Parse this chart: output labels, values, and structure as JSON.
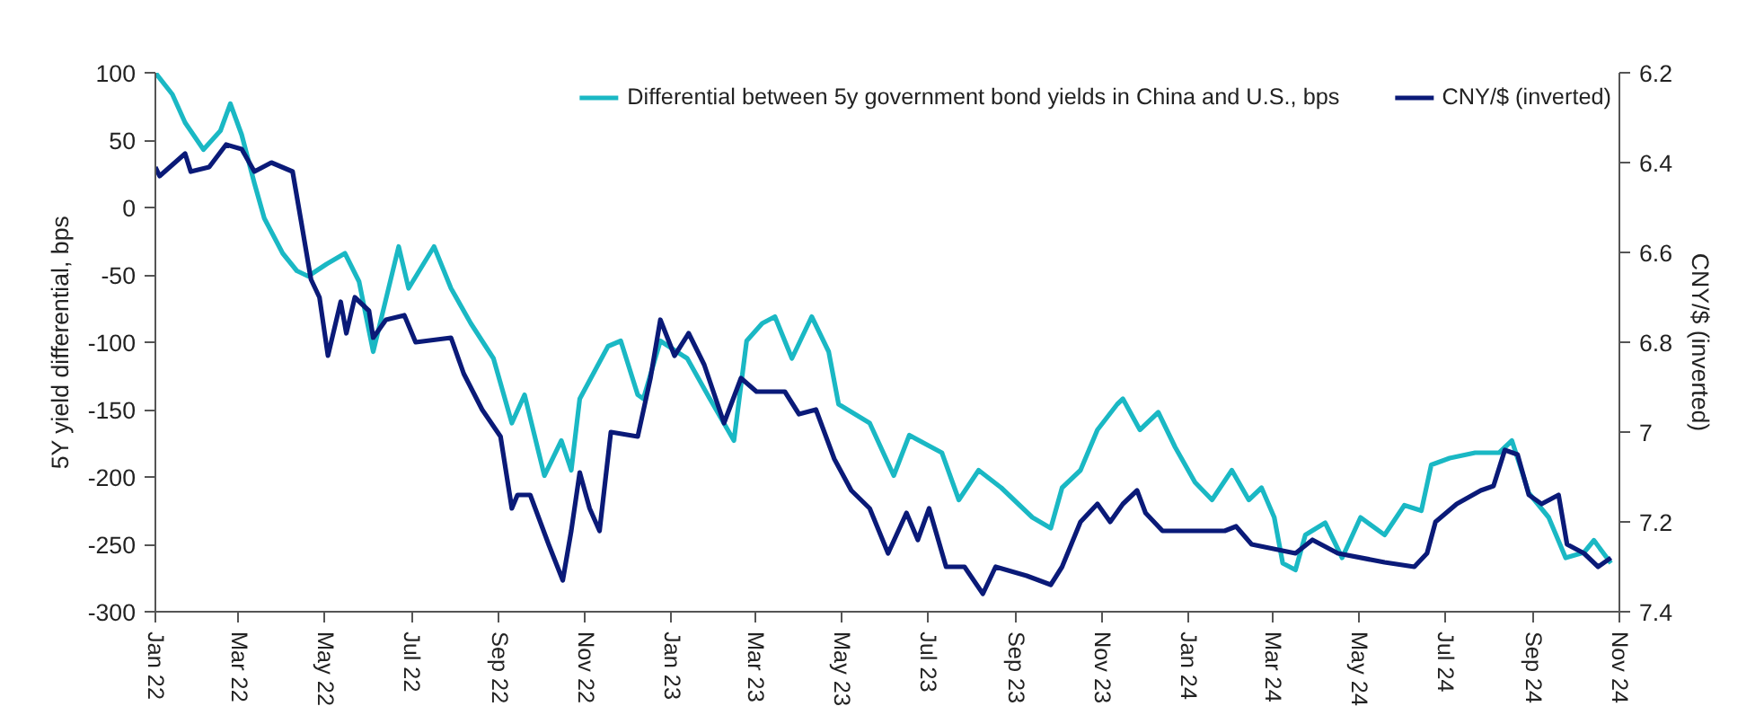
{
  "chart_data": {
    "type": "line",
    "ylabel": "5Y yield differential, bps",
    "y2label": "CNY/$ (inverted)",
    "xlim": [
      "2022-01-01",
      "2024-11-01"
    ],
    "xticks": [
      {
        "value": "2022-01-01",
        "label": "Jan 22"
      },
      {
        "value": "2022-03-01",
        "label": "Mar 22"
      },
      {
        "value": "2022-05-01",
        "label": "May 22"
      },
      {
        "value": "2022-07-01",
        "label": "Jul 22"
      },
      {
        "value": "2022-09-01",
        "label": "Sep 22"
      },
      {
        "value": "2022-11-01",
        "label": "Nov 22"
      },
      {
        "value": "2023-01-01",
        "label": "Jan 23"
      },
      {
        "value": "2023-03-01",
        "label": "Mar 23"
      },
      {
        "value": "2023-05-01",
        "label": "May 23"
      },
      {
        "value": "2023-07-01",
        "label": "Jul 23"
      },
      {
        "value": "2023-09-01",
        "label": "Sep 23"
      },
      {
        "value": "2023-11-01",
        "label": "Nov 23"
      },
      {
        "value": "2024-01-01",
        "label": "Jan 24"
      },
      {
        "value": "2024-03-01",
        "label": "Mar 24"
      },
      {
        "value": "2024-05-01",
        "label": "May 24"
      },
      {
        "value": "2024-07-01",
        "label": "Jul 24"
      },
      {
        "value": "2024-09-01",
        "label": "Sep 24"
      },
      {
        "value": "2024-11-01",
        "label": "Nov 24"
      }
    ],
    "ylim": [
      -300,
      100
    ],
    "yticks": [
      -300,
      -250,
      -200,
      -150,
      -100,
      -50,
      0,
      50,
      100
    ],
    "y2lim": [
      7.4,
      6.2
    ],
    "y2ticks": [
      {
        "value": 6.2,
        "label": "6.2"
      },
      {
        "value": 6.4,
        "label": "6.4"
      },
      {
        "value": 6.6,
        "label": "6.6"
      },
      {
        "value": 6.8,
        "label": "6.8"
      },
      {
        "value": 7.0,
        "label": "7"
      },
      {
        "value": 7.2,
        "label": "7.2"
      },
      {
        "value": 7.4,
        "label": "7.4"
      }
    ],
    "legend": "top right",
    "marker": "none",
    "line_style": "solid",
    "series": [
      {
        "name": "Differential between 5y government bond yields in China and U.S., bps",
        "color": "#1ab8c4",
        "x": [
          "2022-01-01",
          "2022-01-13",
          "2022-01-22",
          "2022-02-04",
          "2022-02-16",
          "2022-02-23",
          "2022-03-03",
          "2022-03-12",
          "2022-03-19",
          "2022-04-01",
          "2022-04-11",
          "2022-04-19",
          "2022-05-02",
          "2022-05-15",
          "2022-05-25",
          "2022-06-04",
          "2022-06-13",
          "2022-06-22",
          "2022-06-29",
          "2022-07-17",
          "2022-07-29",
          "2022-08-12",
          "2022-08-28",
          "2022-09-10",
          "2022-09-19",
          "2022-10-03",
          "2022-10-15",
          "2022-10-22",
          "2022-10-28",
          "2022-11-17",
          "2022-11-26",
          "2022-12-08",
          "2022-12-12",
          "2022-12-24",
          "2023-01-12",
          "2023-01-28",
          "2023-02-14",
          "2023-02-23",
          "2023-03-06",
          "2023-03-15",
          "2023-03-27",
          "2023-04-10",
          "2023-04-22",
          "2023-04-29",
          "2023-05-21",
          "2023-06-07",
          "2023-06-18",
          "2023-07-11",
          "2023-07-23",
          "2023-08-06",
          "2023-08-22",
          "2023-09-13",
          "2023-09-26",
          "2023-10-04",
          "2023-10-17",
          "2023-10-29",
          "2023-11-12",
          "2023-11-16",
          "2023-11-28",
          "2023-12-11",
          "2023-12-23",
          "2024-01-06",
          "2024-01-18",
          "2024-02-01",
          "2024-02-13",
          "2024-02-22",
          "2024-03-02",
          "2024-03-08",
          "2024-03-17",
          "2024-03-24",
          "2024-04-07",
          "2024-04-19",
          "2024-05-02",
          "2024-05-19",
          "2024-06-02",
          "2024-06-14",
          "2024-06-21",
          "2024-07-04",
          "2024-07-22",
          "2024-08-08",
          "2024-08-17",
          "2024-08-29",
          "2024-09-12",
          "2024-09-24",
          "2024-10-07",
          "2024-10-14",
          "2024-10-26"
        ],
        "values": [
          100,
          84,
          63,
          43,
          57,
          77,
          54,
          18,
          -8,
          -34,
          -47,
          -51,
          -42,
          -34,
          -55,
          -107,
          -68,
          -29,
          -60,
          -29,
          -60,
          -86,
          -112,
          -160,
          -139,
          -199,
          -173,
          -195,
          -142,
          -103,
          -99,
          -139,
          -142,
          -99,
          -112,
          -142,
          -173,
          -99,
          -86,
          -81,
          -112,
          -81,
          -107,
          -146,
          -160,
          -199,
          -169,
          -182,
          -217,
          -195,
          -208,
          -230,
          -238,
          -208,
          -195,
          -165,
          -146,
          -142,
          -165,
          -152,
          -178,
          -204,
          -217,
          -195,
          -217,
          -208,
          -230,
          -264,
          -269,
          -243,
          -234,
          -260,
          -230,
          -243,
          -221,
          -225,
          -191,
          -186,
          -182,
          -182,
          -173,
          -212,
          -230,
          -260,
          -256,
          -247,
          -264
        ]
      },
      {
        "name": "CNY/$ (inverted)",
        "color": "#0a1a78",
        "axis": "y2",
        "x": [
          "2022-01-01",
          "2022-01-04",
          "2022-01-22",
          "2022-01-26",
          "2022-02-08",
          "2022-02-20",
          "2022-03-03",
          "2022-03-12",
          "2022-03-24",
          "2022-04-08",
          "2022-04-14",
          "2022-04-21",
          "2022-04-27",
          "2022-05-03",
          "2022-05-12",
          "2022-05-16",
          "2022-05-22",
          "2022-06-01",
          "2022-06-04",
          "2022-06-13",
          "2022-06-26",
          "2022-07-04",
          "2022-07-29",
          "2022-08-07",
          "2022-08-20",
          "2022-09-02",
          "2022-09-10",
          "2022-09-14",
          "2022-09-23",
          "2022-10-06",
          "2022-10-16",
          "2022-10-22",
          "2022-10-28",
          "2022-11-04",
          "2022-11-11",
          "2022-11-19",
          "2022-12-08",
          "2022-12-17",
          "2022-12-24",
          "2023-01-03",
          "2023-01-13",
          "2023-01-24",
          "2023-02-07",
          "2023-02-19",
          "2023-03-02",
          "2023-03-22",
          "2023-04-01",
          "2023-04-13",
          "2023-04-26",
          "2023-05-08",
          "2023-05-21",
          "2023-06-03",
          "2023-06-16",
          "2023-06-24",
          "2023-07-02",
          "2023-07-14",
          "2023-07-27",
          "2023-08-09",
          "2023-08-18",
          "2023-09-09",
          "2023-09-26",
          "2023-10-04",
          "2023-10-17",
          "2023-10-29",
          "2023-11-07",
          "2023-11-16",
          "2023-11-26",
          "2023-12-02",
          "2023-12-14",
          "2024-01-02",
          "2024-01-27",
          "2024-02-04",
          "2024-02-15",
          "2024-03-17",
          "2024-03-29",
          "2024-04-16",
          "2024-05-19",
          "2024-06-09",
          "2024-06-18",
          "2024-06-24",
          "2024-07-09",
          "2024-07-26",
          "2024-08-04",
          "2024-08-12",
          "2024-08-21",
          "2024-08-29",
          "2024-09-07",
          "2024-09-19",
          "2024-09-25",
          "2024-10-07",
          "2024-10-17",
          "2024-10-26"
        ],
        "values": [
          6.41,
          6.43,
          6.38,
          6.42,
          6.41,
          6.36,
          6.37,
          6.42,
          6.4,
          6.42,
          6.53,
          6.66,
          6.7,
          6.83,
          6.71,
          6.78,
          6.7,
          6.73,
          6.79,
          6.75,
          6.74,
          6.8,
          6.79,
          6.87,
          6.95,
          7.01,
          7.17,
          7.14,
          7.14,
          7.25,
          7.33,
          7.22,
          7.09,
          7.17,
          7.22,
          7.0,
          7.01,
          6.88,
          6.75,
          6.83,
          6.78,
          6.85,
          6.98,
          6.88,
          6.91,
          6.91,
          6.96,
          6.95,
          7.06,
          7.13,
          7.17,
          7.27,
          7.18,
          7.24,
          7.17,
          7.3,
          7.3,
          7.36,
          7.3,
          7.32,
          7.34,
          7.3,
          7.2,
          7.16,
          7.2,
          7.16,
          7.13,
          7.18,
          7.22,
          7.22,
          7.22,
          7.21,
          7.25,
          7.27,
          7.24,
          7.27,
          7.29,
          7.3,
          7.27,
          7.2,
          7.16,
          7.13,
          7.12,
          7.04,
          7.05,
          7.14,
          7.16,
          7.14,
          7.25,
          7.27,
          7.3,
          7.28
        ]
      }
    ]
  }
}
